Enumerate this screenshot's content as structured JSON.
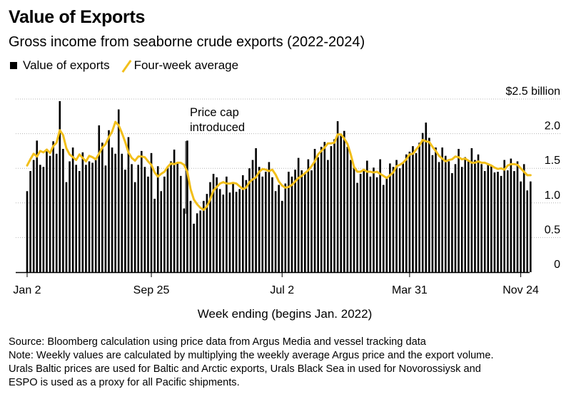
{
  "header": {
    "title": "Value of Exports",
    "subtitle": "Gross income from seaborne crude exports (2022-2024)"
  },
  "legend": {
    "bars_label": "Value of exports",
    "line_label": "Four-week average"
  },
  "annotation": {
    "line1": "Price cap",
    "line2": "introduced"
  },
  "notes": {
    "source": "Source: Bloomberg calculation using price data from Argus Media and vessel tracking data",
    "note1": "Note: Weekly values are calculated by multiplying the weekly average Argus price and the export volume.",
    "note2": "Urals Baltic prices are used for Baltic and Arctic exports, Urals Black Sea in used for Novorossiysk and",
    "note3": "ESPO is used as a proxy for all Pacific shipments."
  },
  "colors": {
    "bars": "#000000",
    "average_line": "#f2bf1a",
    "grid": "#b4b4b4"
  },
  "chart_data": {
    "type": "bar",
    "title": "Value of Exports",
    "subtitle": "Gross income from seaborne crude exports (2022-2024)",
    "xlabel": "Week ending (begins Jan. 2022)",
    "ylabel": "",
    "ylim": [
      0,
      2.5
    ],
    "y_ticks": [
      {
        "value": 0,
        "label": "0"
      },
      {
        "value": 0.5,
        "label": "0.5"
      },
      {
        "value": 1.0,
        "label": "1.0"
      },
      {
        "value": 1.5,
        "label": "1.5"
      },
      {
        "value": 2.0,
        "label": "2.0"
      },
      {
        "value": 2.5,
        "label": "$2.5 billion"
      }
    ],
    "x_ticks": [
      {
        "index": 0,
        "label": "Jan 2"
      },
      {
        "index": 38,
        "label": "Sep 25"
      },
      {
        "index": 78,
        "label": "Jul 2"
      },
      {
        "index": 117,
        "label": "Mar 31"
      },
      {
        "index": 151,
        "label": "Nov 24"
      }
    ],
    "grid": true,
    "annotations": [
      {
        "x_index": 48,
        "text": "Price cap introduced"
      }
    ],
    "series": [
      {
        "name": "Value of exports",
        "type": "bar",
        "values": [
          1.17,
          1.46,
          1.62,
          1.9,
          1.55,
          1.52,
          1.78,
          1.68,
          1.89,
          1.71,
          2.47,
          1.78,
          1.3,
          1.6,
          1.8,
          1.55,
          1.46,
          1.73,
          1.55,
          1.6,
          1.58,
          1.62,
          2.12,
          1.87,
          1.54,
          2.05,
          1.8,
          1.71,
          2.35,
          1.71,
          1.48,
          1.95,
          1.56,
          1.3,
          1.55,
          1.75,
          1.52,
          1.38,
          1.72,
          1.06,
          1.53,
          1.17,
          1.38,
          1.51,
          1.6,
          1.77,
          1.57,
          1.39,
          0.92,
          1.9,
          1.03,
          0.7,
          0.85,
          0.89,
          1.03,
          1.13,
          1.3,
          1.42,
          1.37,
          1.2,
          1.12,
          1.38,
          1.15,
          1.3,
          1.16,
          1.2,
          1.4,
          1.33,
          1.5,
          1.62,
          1.79,
          1.52,
          1.38,
          1.45,
          1.59,
          1.37,
          1.17,
          1.26,
          1.03,
          1.28,
          1.45,
          1.38,
          1.48,
          1.65,
          1.47,
          1.43,
          1.63,
          1.47,
          1.78,
          1.66,
          1.81,
          1.88,
          1.62,
          1.82,
          1.92,
          2.18,
          1.97,
          2.04,
          1.81,
          1.62,
          1.52,
          1.29,
          1.42,
          1.49,
          1.61,
          1.38,
          1.51,
          1.37,
          1.63,
          1.26,
          1.37,
          1.57,
          1.52,
          1.62,
          1.5,
          1.58,
          1.7,
          1.74,
          1.82,
          1.72,
          1.87,
          2.01,
          2.16,
          1.94,
          1.69,
          1.8,
          1.59,
          1.8,
          1.68,
          1.6,
          1.43,
          1.56,
          1.78,
          1.52,
          1.66,
          1.61,
          1.79,
          1.62,
          1.7,
          1.56,
          1.46,
          1.57,
          1.53,
          1.44,
          1.45,
          1.39,
          1.62,
          1.47,
          1.64,
          1.46,
          1.6,
          1.31,
          1.56,
          1.18,
          1.31
        ]
      },
      {
        "name": "Four-week average",
        "type": "line",
        "values": [
          1.54,
          1.63,
          1.71,
          1.67,
          1.75,
          1.73,
          1.77,
          1.72,
          1.82,
          1.87,
          2.05,
          1.98,
          1.79,
          1.7,
          1.66,
          1.62,
          1.7,
          1.65,
          1.6,
          1.68,
          1.66,
          1.63,
          1.71,
          1.8,
          1.85,
          1.95,
          2.03,
          2.17,
          2.12,
          2.01,
          1.88,
          1.73,
          1.65,
          1.61,
          1.67,
          1.67,
          1.66,
          1.6,
          1.55,
          1.44,
          1.38,
          1.42,
          1.45,
          1.52,
          1.57,
          1.56,
          1.58,
          1.58,
          1.55,
          1.45,
          1.2,
          1.05,
          0.98,
          0.93,
          0.9,
          0.95,
          1.05,
          1.18,
          1.23,
          1.28,
          1.3,
          1.28,
          1.28,
          1.29,
          1.28,
          1.24,
          1.2,
          1.22,
          1.3,
          1.34,
          1.37,
          1.45,
          1.49,
          1.48,
          1.46,
          1.48,
          1.41,
          1.31,
          1.25,
          1.22,
          1.23,
          1.26,
          1.31,
          1.36,
          1.39,
          1.43,
          1.47,
          1.53,
          1.6,
          1.7,
          1.75,
          1.8,
          1.86,
          1.86,
          1.87,
          1.99,
          1.99,
          1.93,
          1.85,
          1.7,
          1.52,
          1.45,
          1.45,
          1.48,
          1.45,
          1.45,
          1.44,
          1.45,
          1.42,
          1.39,
          1.36,
          1.4,
          1.44,
          1.53,
          1.55,
          1.58,
          1.63,
          1.7,
          1.71,
          1.77,
          1.83,
          1.91,
          1.89,
          1.88,
          1.81,
          1.75,
          1.68,
          1.64,
          1.6,
          1.62,
          1.63,
          1.67,
          1.66,
          1.63,
          1.64,
          1.61,
          1.58,
          1.58,
          1.6,
          1.58,
          1.58,
          1.56,
          1.54,
          1.51,
          1.49,
          1.5,
          1.48,
          1.54,
          1.56,
          1.56,
          1.55,
          1.5,
          1.45,
          1.4,
          1.4
        ]
      }
    ]
  }
}
